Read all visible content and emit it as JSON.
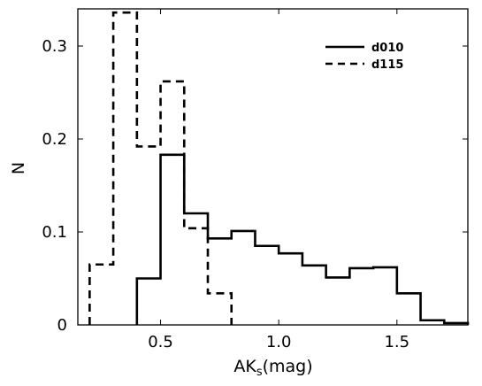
{
  "chart_data": {
    "type": "step",
    "title": "",
    "xlabel": {
      "main": "AK",
      "subscript": "s",
      "unit": "(mag)"
    },
    "ylabel": "N",
    "xlim": [
      0.15,
      1.8
    ],
    "ylim": [
      0,
      0.34
    ],
    "xticks": [
      0.5,
      1.0,
      1.5
    ],
    "xtick_labels": [
      "0.5",
      "1.0",
      "1.5"
    ],
    "yticks": [
      0,
      0.1,
      0.2,
      0.3
    ],
    "ytick_labels": [
      "0",
      "0.1",
      "0.2",
      "0.3"
    ],
    "grid": false,
    "legend_position": "top-right",
    "series": [
      {
        "name": "d010",
        "style": "solid",
        "color": "#000000",
        "bin_edges": [
          0.4,
          0.5,
          0.6,
          0.7,
          0.8,
          0.9,
          1.0,
          1.1,
          1.2,
          1.3,
          1.4,
          1.5,
          1.6,
          1.7,
          1.8
        ],
        "values": [
          0.05,
          0.183,
          0.12,
          0.093,
          0.101,
          0.085,
          0.077,
          0.064,
          0.051,
          0.061,
          0.062,
          0.034,
          0.005,
          0.002
        ]
      },
      {
        "name": "d115",
        "style": "dashed",
        "color": "#000000",
        "bin_edges": [
          0.2,
          0.3,
          0.4,
          0.5,
          0.6,
          0.7,
          0.8
        ],
        "values": [
          0.065,
          0.336,
          0.192,
          0.262,
          0.104,
          0.034
        ]
      }
    ]
  }
}
